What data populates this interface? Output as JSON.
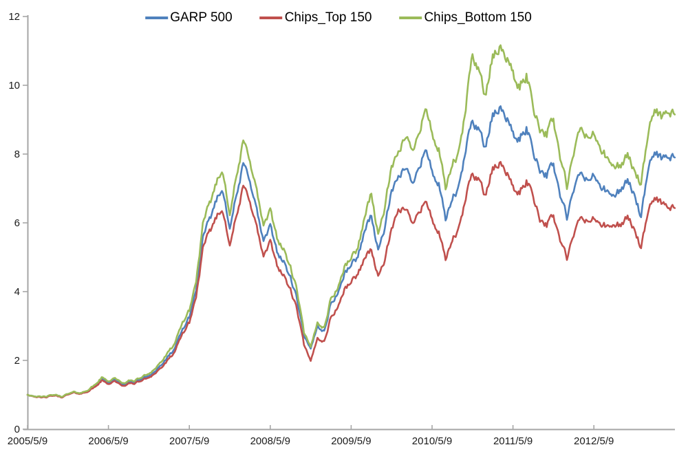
{
  "chart_data": {
    "type": "line",
    "title": "",
    "xlabel": "",
    "ylabel": "",
    "ylim": [
      0,
      12
    ],
    "y_ticks": [
      0,
      2,
      4,
      6,
      8,
      10,
      12
    ],
    "x_tick_labels": [
      "2005/5/9",
      "2006/5/9",
      "2007/5/9",
      "2008/5/9",
      "2009/5/9",
      "2010/5/9",
      "2011/5/9",
      "2012/5/9"
    ],
    "grid": false,
    "legend_position": "top-center",
    "axis_color": "#A6A6A6",
    "tick_label_color": "#1a1a1a",
    "x": [
      "2005/05",
      "2005/06",
      "2005/07",
      "2005/08",
      "2005/09",
      "2005/10",
      "2005/11",
      "2005/12",
      "2006/01",
      "2006/02",
      "2006/03",
      "2006/04",
      "2006/05",
      "2006/06",
      "2006/07",
      "2006/08",
      "2006/09",
      "2006/10",
      "2006/11",
      "2006/12",
      "2007/01",
      "2007/02",
      "2007/03",
      "2007/04",
      "2007/05",
      "2007/06",
      "2007/07",
      "2007/08",
      "2007/09",
      "2007/10",
      "2007/11",
      "2007/12",
      "2008/01",
      "2008/02",
      "2008/03",
      "2008/04",
      "2008/05",
      "2008/06",
      "2008/07",
      "2008/08",
      "2008/09",
      "2008/10",
      "2008/11",
      "2008/12",
      "2009/01",
      "2009/02",
      "2009/03",
      "2009/04",
      "2009/05",
      "2009/06",
      "2009/07",
      "2009/08",
      "2009/09",
      "2009/10",
      "2009/11",
      "2009/12",
      "2010/01",
      "2010/02",
      "2010/03",
      "2010/04",
      "2010/05",
      "2010/06",
      "2010/07",
      "2010/08",
      "2010/09",
      "2010/10",
      "2010/11",
      "2010/12",
      "2011/01",
      "2011/02",
      "2011/03",
      "2011/04",
      "2011/05",
      "2011/06",
      "2011/07",
      "2011/08",
      "2011/09",
      "2011/10",
      "2011/11",
      "2011/12",
      "2012/01",
      "2012/02",
      "2012/03",
      "2012/04",
      "2012/05",
      "2012/06",
      "2012/07",
      "2012/08",
      "2012/09",
      "2012/10",
      "2012/11",
      "2012/12",
      "2013/01",
      "2013/02",
      "2013/03",
      "2013/04",
      "2013/05"
    ],
    "series": [
      {
        "name": "GARP 500",
        "color": "#4F81BD",
        "values": [
          1.0,
          0.97,
          0.92,
          0.95,
          0.99,
          0.94,
          1.01,
          1.07,
          1.04,
          1.13,
          1.25,
          1.45,
          1.36,
          1.45,
          1.28,
          1.36,
          1.38,
          1.47,
          1.56,
          1.7,
          1.9,
          2.12,
          2.4,
          2.9,
          3.25,
          4.05,
          5.5,
          6.05,
          6.7,
          6.95,
          5.95,
          6.75,
          7.65,
          7.3,
          6.35,
          5.45,
          5.85,
          5.2,
          4.85,
          4.4,
          3.75,
          2.7,
          2.3,
          3.0,
          2.85,
          3.65,
          3.95,
          4.5,
          4.8,
          5.0,
          5.8,
          6.25,
          5.15,
          5.9,
          6.9,
          7.2,
          7.7,
          7.1,
          7.7,
          8.15,
          7.5,
          7.1,
          6.05,
          6.7,
          7.0,
          8.1,
          9.05,
          8.7,
          8.2,
          9.1,
          9.3,
          9.15,
          8.55,
          8.4,
          8.8,
          8.1,
          7.6,
          7.4,
          7.7,
          6.8,
          6.15,
          6.9,
          7.45,
          7.25,
          7.35,
          7.1,
          6.85,
          6.75,
          7.0,
          7.2,
          6.85,
          6.15,
          7.4,
          8.1,
          7.9,
          7.85,
          7.9
        ]
      },
      {
        "name": "Chips_Top 150",
        "color": "#C0504D",
        "values": [
          1.0,
          0.96,
          0.91,
          0.94,
          0.98,
          0.93,
          1.0,
          1.06,
          1.03,
          1.11,
          1.22,
          1.41,
          1.32,
          1.41,
          1.24,
          1.32,
          1.34,
          1.42,
          1.51,
          1.64,
          1.82,
          2.03,
          2.3,
          2.78,
          3.1,
          3.85,
          5.2,
          5.7,
          6.2,
          6.35,
          5.45,
          6.15,
          7.0,
          6.7,
          5.85,
          5.0,
          5.4,
          4.8,
          4.45,
          4.05,
          3.45,
          2.45,
          1.95,
          2.65,
          2.55,
          3.25,
          3.55,
          4.05,
          4.3,
          4.5,
          5.0,
          5.25,
          4.4,
          4.95,
          5.8,
          6.25,
          6.5,
          5.95,
          6.4,
          6.65,
          6.1,
          5.7,
          4.9,
          5.5,
          5.8,
          6.7,
          7.5,
          7.25,
          6.8,
          7.55,
          7.7,
          7.55,
          7.0,
          6.85,
          7.25,
          6.8,
          6.15,
          5.95,
          6.2,
          5.5,
          4.97,
          5.6,
          6.15,
          6.05,
          6.1,
          6.0,
          5.85,
          5.9,
          5.97,
          6.15,
          5.83,
          5.25,
          6.2,
          6.77,
          6.6,
          6.4,
          6.43
        ]
      },
      {
        "name": "Chips_Bottom 150",
        "color": "#9BBB59",
        "values": [
          1.0,
          0.97,
          0.93,
          0.96,
          1.0,
          0.95,
          1.02,
          1.08,
          1.05,
          1.15,
          1.28,
          1.5,
          1.4,
          1.5,
          1.32,
          1.4,
          1.42,
          1.52,
          1.62,
          1.78,
          2.0,
          2.25,
          2.55,
          3.1,
          3.45,
          4.3,
          5.9,
          6.5,
          7.2,
          7.5,
          6.35,
          7.3,
          8.3,
          7.9,
          6.9,
          5.9,
          6.3,
          5.6,
          5.2,
          4.7,
          4.0,
          2.8,
          2.35,
          3.1,
          2.95,
          3.8,
          4.1,
          4.7,
          5.0,
          5.25,
          6.2,
          6.9,
          5.6,
          6.5,
          7.6,
          7.9,
          8.6,
          8.05,
          8.7,
          9.35,
          8.6,
          8.1,
          6.95,
          7.7,
          8.0,
          9.3,
          11.0,
          10.4,
          9.7,
          10.8,
          11.05,
          10.9,
          10.3,
          9.9,
          10.35,
          9.4,
          8.8,
          8.6,
          9.0,
          7.9,
          7.05,
          7.95,
          8.75,
          8.5,
          8.55,
          8.2,
          7.8,
          7.6,
          7.7,
          7.95,
          7.55,
          7.1,
          8.4,
          9.35,
          9.1,
          9.15,
          9.15
        ]
      }
    ]
  }
}
